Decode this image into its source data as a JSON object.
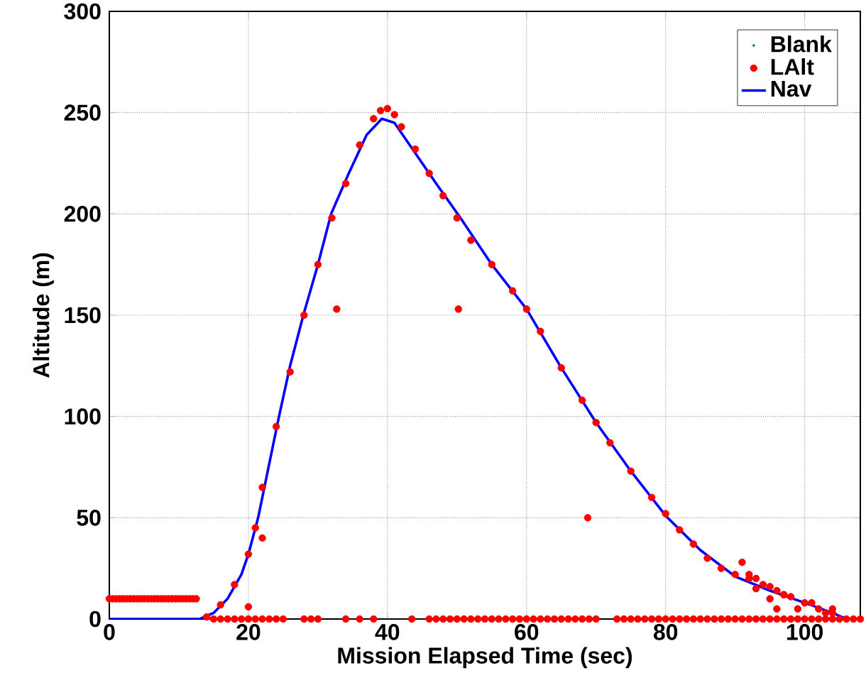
{
  "chart_data": {
    "type": "line",
    "xlabel": "Mission Elapsed Time (sec)",
    "ylabel": "Altitude (m)",
    "xlim": [
      0,
      108
    ],
    "ylim": [
      0,
      300
    ],
    "xticks": [
      0,
      20,
      40,
      60,
      80,
      100
    ],
    "yticks": [
      0,
      50,
      100,
      150,
      200,
      250,
      300
    ],
    "grid": true,
    "legend": "top right",
    "series": [
      {
        "name": "Blank",
        "type": "scatter",
        "color": "#008000",
        "marker": "circle"
      },
      {
        "name": "LAlt",
        "type": "scatter",
        "color": "#ff0000",
        "marker": "circle",
        "x": [
          0,
          0.5,
          1,
          1.5,
          2,
          2.5,
          3,
          3.5,
          4,
          4.5,
          5,
          5.5,
          6,
          6.5,
          7,
          7.5,
          8,
          8.5,
          9,
          9.5,
          10,
          10.5,
          11,
          11.5,
          12,
          12.5,
          15,
          16,
          17,
          18,
          19,
          20,
          21,
          22,
          23,
          24,
          25,
          28,
          29,
          30,
          34,
          36,
          38,
          43.5,
          46,
          47,
          48,
          49,
          50,
          51,
          52,
          53,
          54,
          55,
          56,
          57,
          58,
          59,
          60,
          61,
          62,
          63,
          64,
          65,
          66,
          67,
          68,
          69,
          70,
          73,
          74,
          75,
          76,
          77,
          78,
          79,
          80,
          81,
          82,
          83,
          84,
          85,
          86,
          87,
          88,
          89,
          90,
          91,
          92,
          93,
          94,
          95,
          96,
          97,
          98,
          99,
          100,
          101,
          102,
          103,
          104,
          105,
          106,
          107,
          108,
          14,
          16,
          18,
          20,
          22,
          24,
          26,
          28,
          30,
          32,
          34,
          36,
          38,
          39,
          40,
          41,
          42,
          44,
          46,
          48,
          50,
          52,
          55,
          58,
          60,
          62,
          65,
          68,
          70,
          72,
          75,
          78,
          80,
          82,
          84,
          86,
          88,
          90,
          91,
          92,
          93,
          94,
          95,
          96,
          97,
          98,
          100,
          102,
          104,
          92,
          93,
          95,
          96,
          97,
          99,
          101,
          103,
          104,
          32.7,
          50.2,
          68.8,
          20,
          21,
          22
        ],
        "values": [
          10,
          10,
          10,
          10,
          10,
          10,
          10,
          10,
          10,
          10,
          10,
          10,
          10,
          10,
          10,
          10,
          10,
          10,
          10,
          10,
          10,
          10,
          10,
          10,
          10,
          10,
          0,
          0,
          0,
          0,
          0,
          0,
          0,
          0,
          0,
          0,
          0,
          0,
          0,
          0,
          0,
          0,
          0,
          0,
          0,
          0,
          0,
          0,
          0,
          0,
          0,
          0,
          0,
          0,
          0,
          0,
          0,
          0,
          0,
          0,
          0,
          0,
          0,
          0,
          0,
          0,
          0,
          0,
          0,
          0,
          0,
          0,
          0,
          0,
          0,
          0,
          0,
          0,
          0,
          0,
          0,
          0,
          0,
          0,
          0,
          0,
          0,
          0,
          0,
          0,
          0,
          0,
          0,
          0,
          0,
          0,
          0,
          0,
          0,
          0,
          0,
          0,
          0,
          0,
          0,
          1,
          7,
          17,
          32,
          65,
          95,
          122,
          150,
          175,
          198,
          215,
          234,
          247,
          251,
          252,
          249,
          243,
          232,
          220,
          209,
          198,
          187,
          175,
          162,
          153,
          142,
          124,
          108,
          97,
          87,
          73,
          60,
          52,
          44,
          37,
          30,
          25,
          22,
          28,
          22,
          20,
          17,
          16,
          14,
          12,
          11,
          8,
          5,
          3,
          20,
          15,
          10,
          5,
          12,
          5,
          8,
          3,
          5,
          153,
          153,
          50,
          6,
          45,
          40
        ]
      },
      {
        "name": "Nav",
        "color": "#0000ff",
        "marker": "none",
        "x": [
          0,
          13,
          15,
          17,
          19,
          20,
          21.4,
          24.4,
          26,
          27.9,
          30,
          31.9,
          34.3,
          37,
          39.2,
          41,
          43.6,
          47,
          50.5,
          55,
          60,
          65,
          70,
          75,
          80,
          85,
          90,
          95,
          100,
          104,
          106,
          108
        ],
        "values": [
          0,
          0,
          3,
          10,
          22,
          32,
          50,
          100,
          125,
          150,
          175,
          200,
          219,
          239,
          247,
          245,
          232,
          215,
          198,
          175,
          153,
          124,
          97,
          73,
          51,
          34,
          21,
          14,
          8,
          3,
          0,
          0
        ]
      }
    ]
  }
}
